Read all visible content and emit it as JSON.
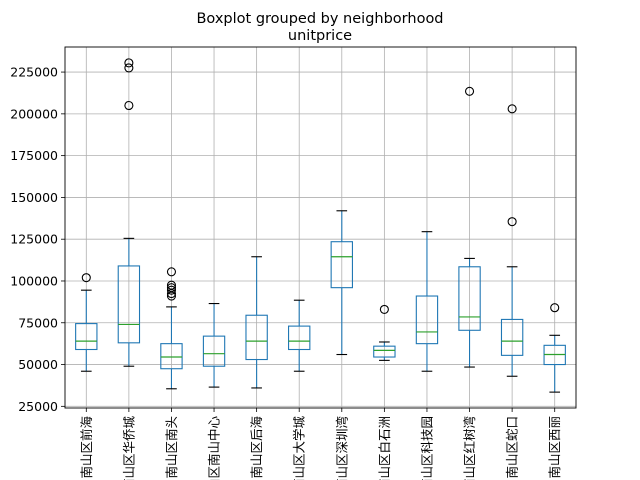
{
  "chart_data": {
    "type": "boxplot",
    "suptitle": "Boxplot grouped by neighborhood",
    "title": "unitprice",
    "xlabel": "",
    "ylabel": "",
    "ylim": [
      24000,
      240000
    ],
    "y_ticks": [
      25000,
      50000,
      75000,
      100000,
      125000,
      150000,
      175000,
      200000,
      225000
    ],
    "grid": true,
    "colors": {
      "box": "#1f77b4",
      "median": "#2ca02c",
      "grid": "#b0b0b0",
      "flier": "#000000"
    },
    "categories": [
      "南山区前海",
      "南山区华侨城",
      "南山区南头",
      "南山区南山中心",
      "南山区后海",
      "南山区大学城",
      "南山区深圳湾",
      "南山区白石洲",
      "南山区科技园",
      "南山区红树湾",
      "南山区蛇口",
      "南山区西丽"
    ],
    "boxes": [
      {
        "whisker_low": 46000,
        "q1": 59000,
        "median": 64000,
        "q3": 74500,
        "whisker_high": 94500,
        "fliers": [
          102000
        ]
      },
      {
        "whisker_low": 49000,
        "q1": 63000,
        "median": 74000,
        "q3": 109000,
        "whisker_high": 125500,
        "fliers": [
          205000,
          227500,
          230500
        ]
      },
      {
        "whisker_low": 35500,
        "q1": 47500,
        "median": 54500,
        "q3": 62500,
        "whisker_high": 84500,
        "fliers": [
          91000,
          92500,
          94500,
          96000,
          97500,
          105500
        ]
      },
      {
        "whisker_low": 36500,
        "q1": 49000,
        "median": 56500,
        "q3": 67000,
        "whisker_high": 86500,
        "fliers": []
      },
      {
        "whisker_low": 36000,
        "q1": 53000,
        "median": 64000,
        "q3": 79500,
        "whisker_high": 114500,
        "fliers": []
      },
      {
        "whisker_low": 46000,
        "q1": 59000,
        "median": 64000,
        "q3": 73000,
        "whisker_high": 88500,
        "fliers": []
      },
      {
        "whisker_low": 56000,
        "q1": 96000,
        "median": 114500,
        "q3": 123500,
        "whisker_high": 142000,
        "fliers": []
      },
      {
        "whisker_low": 52500,
        "q1": 54500,
        "median": 58500,
        "q3": 61000,
        "whisker_high": 63500,
        "fliers": [
          83000
        ]
      },
      {
        "whisker_low": 46000,
        "q1": 62500,
        "median": 69500,
        "q3": 91000,
        "whisker_high": 129500,
        "fliers": []
      },
      {
        "whisker_low": 48500,
        "q1": 70500,
        "median": 78500,
        "q3": 108500,
        "whisker_high": 113500,
        "fliers": [
          213500
        ]
      },
      {
        "whisker_low": 43000,
        "q1": 55500,
        "median": 64000,
        "q3": 77000,
        "whisker_high": 108500,
        "fliers": [
          135500,
          203000
        ]
      },
      {
        "whisker_low": 33500,
        "q1": 50000,
        "median": 56000,
        "q3": 61500,
        "whisker_high": 67500,
        "fliers": [
          84000
        ]
      }
    ]
  }
}
